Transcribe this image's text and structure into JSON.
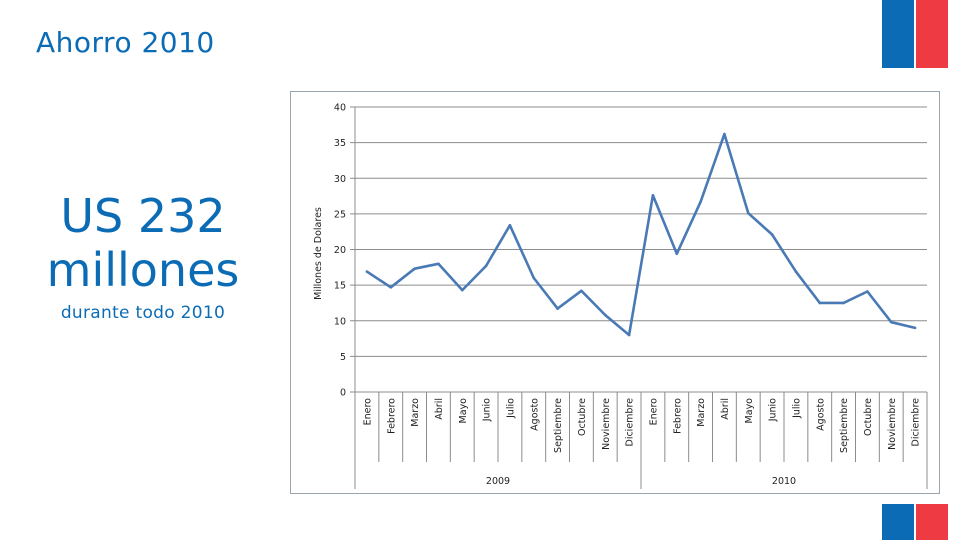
{
  "slide": {
    "title": "Ahorro 2010",
    "highlight_amount": "US 232",
    "highlight_unit": "millones",
    "highlight_caption": "durante todo 2010"
  },
  "colors": {
    "accent": "#0b6cb5",
    "flag_blue": "#0b6cb5",
    "flag_red": "#ee3a43",
    "series": "#4a7ab5"
  },
  "chart_data": {
    "type": "line",
    "ylabel": "Millones de Dolares",
    "xlabel": "",
    "ylim": [
      0,
      40
    ],
    "yticks": [
      "0",
      "5",
      "10",
      "15",
      "20",
      "25",
      "30",
      "35",
      "40"
    ],
    "grid": true,
    "legend": "none",
    "groups": [
      {
        "label": "2009",
        "categories": [
          "Enero",
          "Febrero",
          "Marzo",
          "Abril",
          "Mayo",
          "Junio",
          "Julio",
          "Agosto",
          "Septiembre",
          "Octubre",
          "Noviembre",
          "Diciembre"
        ]
      },
      {
        "label": "2010",
        "categories": [
          "Enero",
          "Febrero",
          "Marzo",
          "Abril",
          "Mayo",
          "Junio",
          "Julio",
          "Agosto",
          "Septiembre",
          "Octubre",
          "Noviembre",
          "Diciembre"
        ]
      }
    ],
    "series": [
      {
        "values": [
          16.9,
          14.7,
          17.3,
          18.0,
          14.3,
          17.7,
          23.4,
          16.0,
          11.7,
          14.2,
          10.8,
          8.0,
          27.6,
          19.4,
          26.7,
          36.2,
          25.1,
          22.1,
          16.9,
          12.5,
          12.5,
          14.1,
          9.8,
          9.0
        ]
      }
    ]
  }
}
